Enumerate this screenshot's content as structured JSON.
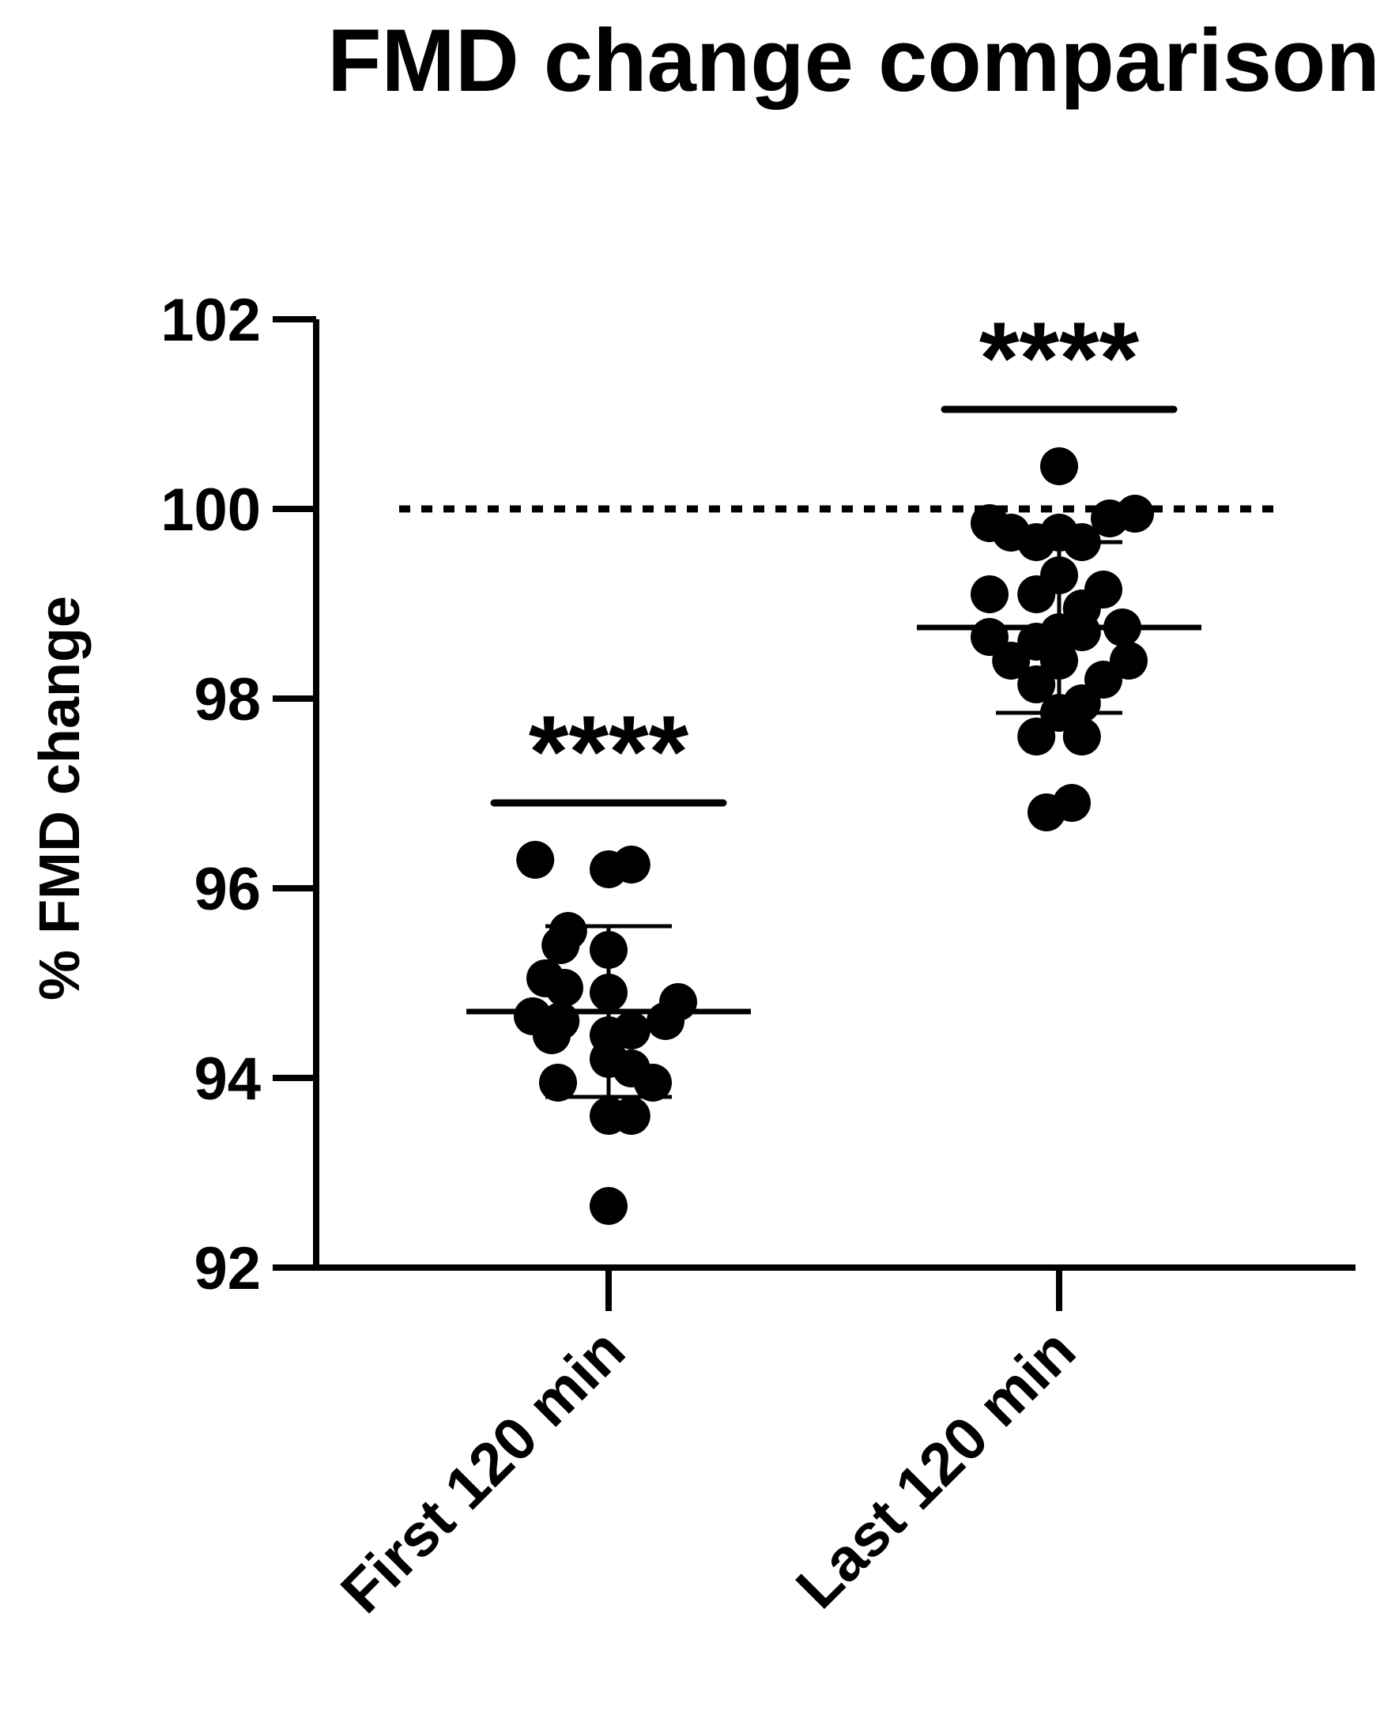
{
  "chart_data": {
    "type": "scatter",
    "title": "FMD change comparison",
    "xlabel": "",
    "ylabel": "% FMD change",
    "ylim": [
      92,
      102
    ],
    "yticks": [
      92,
      94,
      96,
      98,
      100,
      102
    ],
    "categories": [
      "First 120 min",
      "Last 120 min"
    ],
    "reference_line": {
      "y": 100,
      "style": "dashed"
    },
    "series": [
      {
        "category": "First 120 min",
        "mean": 94.7,
        "sd_low": 93.8,
        "sd_high": 95.6,
        "significance": "****",
        "points": [
          [
            -0.58,
            96.3
          ],
          [
            0.0,
            96.2
          ],
          [
            0.18,
            96.25
          ],
          [
            -0.32,
            95.55
          ],
          [
            -0.38,
            95.4
          ],
          [
            0.0,
            95.35
          ],
          [
            -0.5,
            95.05
          ],
          [
            -0.35,
            94.95
          ],
          [
            0.0,
            94.9
          ],
          [
            -0.6,
            94.65
          ],
          [
            -0.38,
            94.6
          ],
          [
            0.45,
            94.6
          ],
          [
            0.55,
            94.8
          ],
          [
            -0.45,
            94.45
          ],
          [
            0.0,
            94.45
          ],
          [
            0.18,
            94.5
          ],
          [
            0.0,
            94.2
          ],
          [
            0.18,
            94.1
          ],
          [
            -0.4,
            93.95
          ],
          [
            0.35,
            93.95
          ],
          [
            0.0,
            93.6
          ],
          [
            0.18,
            93.6
          ],
          [
            0.0,
            92.65
          ]
        ]
      },
      {
        "category": "Last 120 min",
        "mean": 98.75,
        "sd_low": 97.85,
        "sd_high": 99.65,
        "significance": "****",
        "points": [
          [
            0.0,
            100.45
          ],
          [
            -0.55,
            99.85
          ],
          [
            0.6,
            99.95
          ],
          [
            0.4,
            99.9
          ],
          [
            -0.38,
            99.75
          ],
          [
            -0.18,
            99.65
          ],
          [
            0.0,
            99.75
          ],
          [
            0.18,
            99.65
          ],
          [
            0.0,
            99.3
          ],
          [
            -0.55,
            99.1
          ],
          [
            -0.18,
            99.1
          ],
          [
            0.18,
            98.95
          ],
          [
            0.35,
            99.15
          ],
          [
            -0.55,
            98.65
          ],
          [
            -0.18,
            98.6
          ],
          [
            0.0,
            98.7
          ],
          [
            0.18,
            98.7
          ],
          [
            0.5,
            98.75
          ],
          [
            -0.38,
            98.4
          ],
          [
            0.0,
            98.4
          ],
          [
            0.55,
            98.4
          ],
          [
            -0.18,
            98.15
          ],
          [
            0.18,
            97.95
          ],
          [
            0.35,
            98.2
          ],
          [
            0.0,
            97.85
          ],
          [
            -0.18,
            97.6
          ],
          [
            0.18,
            97.6
          ],
          [
            -0.1,
            96.8
          ],
          [
            0.1,
            96.9
          ]
        ]
      }
    ]
  }
}
